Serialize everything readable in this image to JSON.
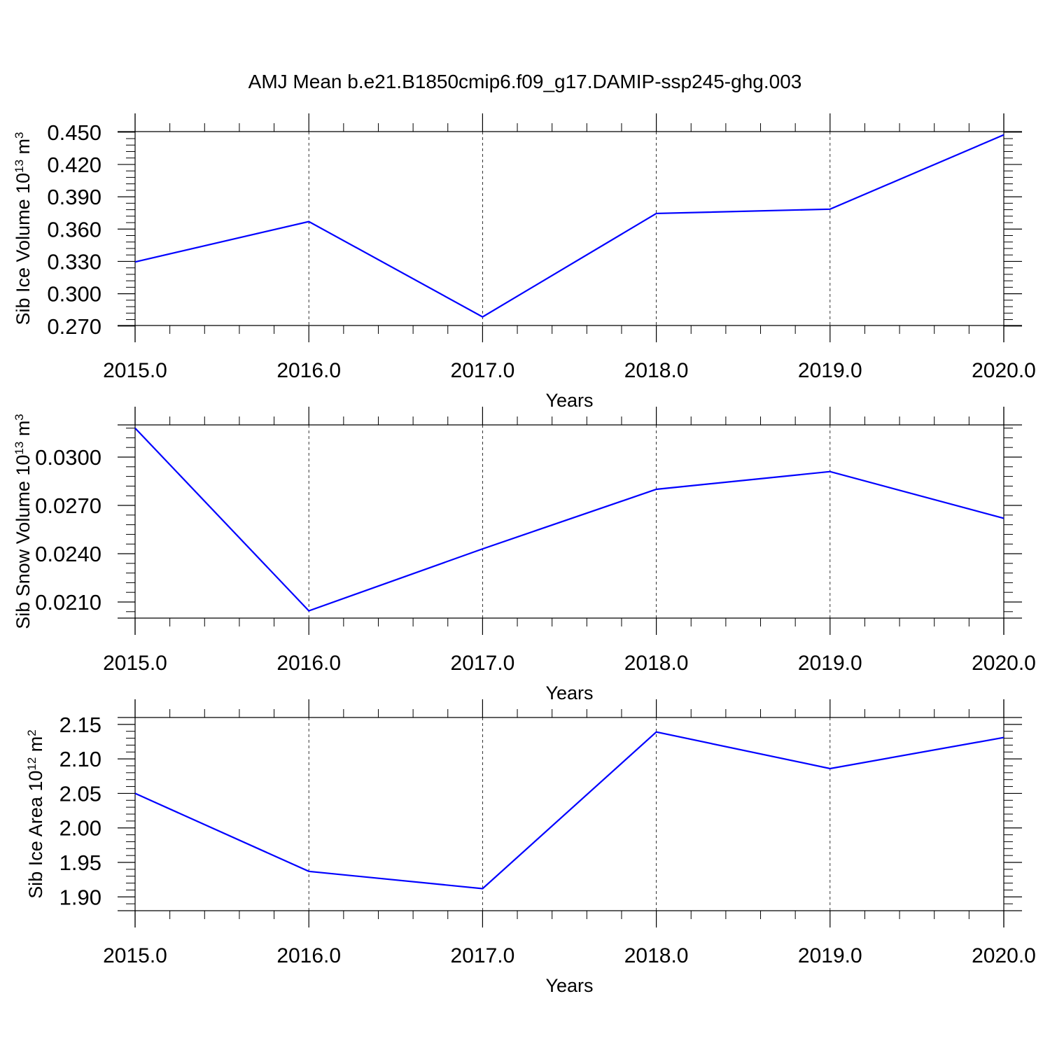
{
  "title": "AMJ Mean b.e21.B1850cmip6.f09_g17.DAMIP-ssp245-ghg.003",
  "line_color": "#0000ff",
  "chart_data": [
    {
      "type": "line",
      "xlabel": "Years",
      "ylabel": "Sib Ice Volume 10",
      "ylabel_exp": "13",
      "ylabel_unit": " m",
      "ylabel_unit_exp": "3",
      "xlim": [
        2015,
        2020
      ],
      "ylim": [
        0.2705,
        0.4505
      ],
      "x_ticks": [
        "2015.0",
        "2016.0",
        "2017.0",
        "2018.0",
        "2019.0",
        "2020.0"
      ],
      "y_ticks": [
        {
          "v": 0.45,
          "label": "0.450"
        },
        {
          "v": 0.42,
          "label": "0.420"
        },
        {
          "v": 0.39,
          "label": "0.390"
        },
        {
          "v": 0.36,
          "label": "0.360"
        },
        {
          "v": 0.33,
          "label": "0.330"
        },
        {
          "v": 0.3,
          "label": "0.300"
        },
        {
          "v": 0.27,
          "label": "0.270"
        }
      ],
      "x": [
        2015,
        2016,
        2017,
        2018,
        2019,
        2020
      ],
      "values": [
        0.3295,
        0.367,
        0.2785,
        0.3745,
        0.3785,
        0.4475
      ]
    },
    {
      "type": "line",
      "xlabel": "Years",
      "ylabel": "Sib Snow Volume 10",
      "ylabel_exp": "13",
      "ylabel_unit": " m",
      "ylabel_unit_exp": "3",
      "xlim": [
        2015,
        2020
      ],
      "ylim": [
        0.02,
        0.032
      ],
      "x_ticks": [
        "2015.0",
        "2016.0",
        "2017.0",
        "2018.0",
        "2019.0",
        "2020.0"
      ],
      "y_ticks": [
        {
          "v": 0.03,
          "label": "0.0300"
        },
        {
          "v": 0.027,
          "label": "0.0270"
        },
        {
          "v": 0.024,
          "label": "0.0240"
        },
        {
          "v": 0.021,
          "label": "0.0210"
        }
      ],
      "x": [
        2015,
        2016,
        2017,
        2018,
        2019,
        2020
      ],
      "values": [
        0.0318,
        0.02045,
        0.0243,
        0.028,
        0.0291,
        0.0262
      ]
    },
    {
      "type": "line",
      "xlabel": "Years",
      "ylabel": "Sib Ice Area 10",
      "ylabel_exp": "12",
      "ylabel_unit": " m",
      "ylabel_unit_exp": "2",
      "xlim": [
        2015,
        2020
      ],
      "ylim": [
        1.88,
        2.16
      ],
      "x_ticks": [
        "2015.0",
        "2016.0",
        "2017.0",
        "2018.0",
        "2019.0",
        "2020.0"
      ],
      "y_ticks": [
        {
          "v": 2.15,
          "label": "2.15"
        },
        {
          "v": 2.1,
          "label": "2.10"
        },
        {
          "v": 2.05,
          "label": "2.05"
        },
        {
          "v": 2.0,
          "label": "2.00"
        },
        {
          "v": 1.95,
          "label": "1.95"
        },
        {
          "v": 1.9,
          "label": "1.90"
        }
      ],
      "x": [
        2015,
        2016,
        2017,
        2018,
        2019,
        2020
      ],
      "values": [
        2.05,
        1.937,
        1.912,
        2.139,
        2.086,
        2.131
      ]
    }
  ]
}
